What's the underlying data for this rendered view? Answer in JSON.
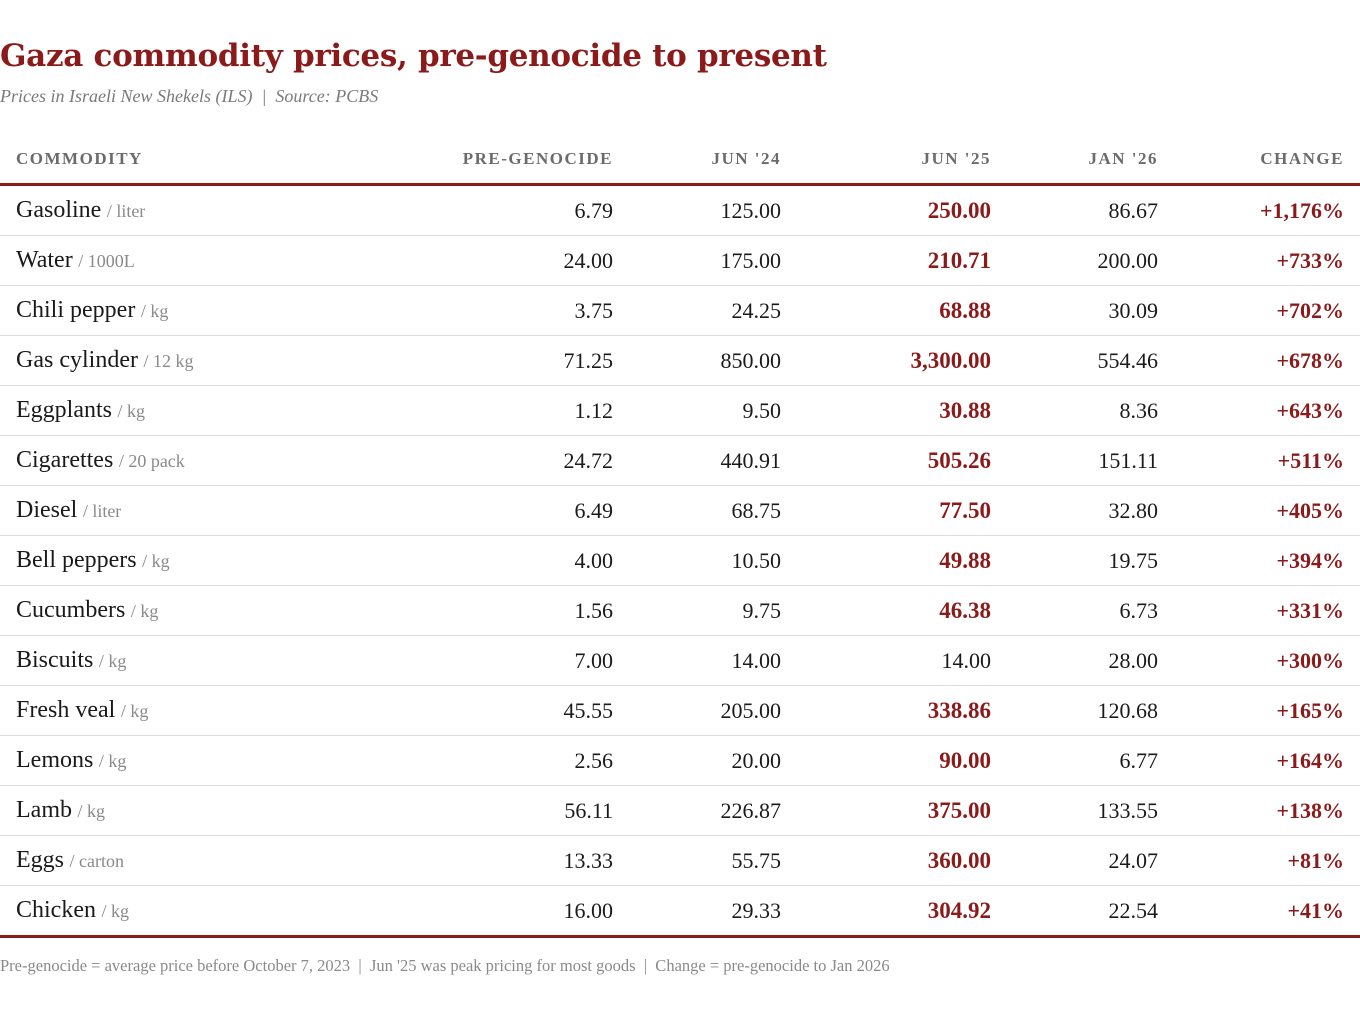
{
  "title": "Gaza commodity prices, pre-genocide to present",
  "subtitle": "Prices in Israeli New Shekels (ILS)  |  Source: PCBS",
  "colors": {
    "accent": "#8b1a1a",
    "header_text": "#6b6b6b",
    "muted": "#8a8a8a",
    "rule": "#dcdcdc"
  },
  "columns": [
    "COMMODITY",
    "PRE-GENOCIDE",
    "JUN '24",
    "JUN '25",
    "JAN '26",
    "CHANGE"
  ],
  "rows": [
    {
      "name": "Gasoline",
      "unit": "/ liter",
      "pre": "6.79",
      "jun24": "125.00",
      "jun25": "250.00",
      "jan26": "86.67",
      "change": "+1,176%",
      "jun25_highlight": true
    },
    {
      "name": "Water",
      "unit": "/ 1000L",
      "pre": "24.00",
      "jun24": "175.00",
      "jun25": "210.71",
      "jan26": "200.00",
      "change": "+733%",
      "jun25_highlight": true
    },
    {
      "name": "Chili pepper",
      "unit": "/ kg",
      "pre": "3.75",
      "jun24": "24.25",
      "jun25": "68.88",
      "jan26": "30.09",
      "change": "+702%",
      "jun25_highlight": true
    },
    {
      "name": "Gas cylinder",
      "unit": "/ 12 kg",
      "pre": "71.25",
      "jun24": "850.00",
      "jun25": "3,300.00",
      "jan26": "554.46",
      "change": "+678%",
      "jun25_highlight": true
    },
    {
      "name": "Eggplants",
      "unit": "/ kg",
      "pre": "1.12",
      "jun24": "9.50",
      "jun25": "30.88",
      "jan26": "8.36",
      "change": "+643%",
      "jun25_highlight": true
    },
    {
      "name": "Cigarettes",
      "unit": "/ 20 pack",
      "pre": "24.72",
      "jun24": "440.91",
      "jun25": "505.26",
      "jan26": "151.11",
      "change": "+511%",
      "jun25_highlight": true
    },
    {
      "name": "Diesel",
      "unit": "/ liter",
      "pre": "6.49",
      "jun24": "68.75",
      "jun25": "77.50",
      "jan26": "32.80",
      "change": "+405%",
      "jun25_highlight": true
    },
    {
      "name": "Bell peppers",
      "unit": "/ kg",
      "pre": "4.00",
      "jun24": "10.50",
      "jun25": "49.88",
      "jan26": "19.75",
      "change": "+394%",
      "jun25_highlight": true
    },
    {
      "name": "Cucumbers",
      "unit": "/ kg",
      "pre": "1.56",
      "jun24": "9.75",
      "jun25": "46.38",
      "jan26": "6.73",
      "change": "+331%",
      "jun25_highlight": true
    },
    {
      "name": "Biscuits",
      "unit": "/ kg",
      "pre": "7.00",
      "jun24": "14.00",
      "jun25": "14.00",
      "jan26": "28.00",
      "change": "+300%",
      "jun25_highlight": false
    },
    {
      "name": "Fresh veal",
      "unit": "/ kg",
      "pre": "45.55",
      "jun24": "205.00",
      "jun25": "338.86",
      "jan26": "120.68",
      "change": "+165%",
      "jun25_highlight": true
    },
    {
      "name": "Lemons",
      "unit": "/ kg",
      "pre": "2.56",
      "jun24": "20.00",
      "jun25": "90.00",
      "jan26": "6.77",
      "change": "+164%",
      "jun25_highlight": true
    },
    {
      "name": "Lamb",
      "unit": "/ kg",
      "pre": "56.11",
      "jun24": "226.87",
      "jun25": "375.00",
      "jan26": "133.55",
      "change": "+138%",
      "jun25_highlight": true
    },
    {
      "name": "Eggs",
      "unit": "/ carton",
      "pre": "13.33",
      "jun24": "55.75",
      "jun25": "360.00",
      "jan26": "24.07",
      "change": "+81%",
      "jun25_highlight": true
    },
    {
      "name": "Chicken",
      "unit": "/ kg",
      "pre": "16.00",
      "jun24": "29.33",
      "jun25": "304.92",
      "jan26": "22.54",
      "change": "+41%",
      "jun25_highlight": true
    }
  ],
  "footnote": "Pre-genocide = average price before October 7, 2023  |  Jun '25 was peak pricing for most goods  |  Change = pre-genocide to Jan 2026"
}
